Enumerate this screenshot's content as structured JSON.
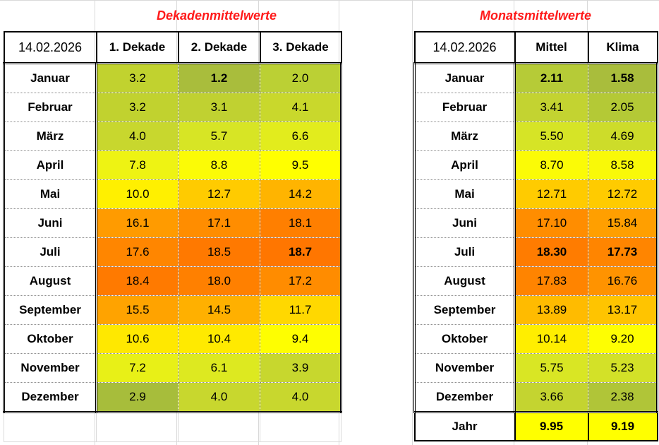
{
  "dekaden": {
    "title": "Dekadenmittelwerte",
    "date": "14.02.2026",
    "columns": [
      "1. Dekade",
      "2. Dekade",
      "3. Dekade"
    ],
    "rows": [
      {
        "month": "Januar",
        "values": [
          "3.2",
          "1.2",
          "2.0"
        ],
        "colors": [
          "#c1d22f",
          "#a9bd3c",
          "#bbd034"
        ],
        "bold": [
          false,
          true,
          false
        ]
      },
      {
        "month": "Februar",
        "values": [
          "3.2",
          "3.1",
          "4.1"
        ],
        "colors": [
          "#c1d22f",
          "#c0d131",
          "#c9d82c"
        ],
        "bold": [
          false,
          false,
          false
        ]
      },
      {
        "month": "März",
        "values": [
          "4.0",
          "5.7",
          "6.6"
        ],
        "colors": [
          "#c8d72e",
          "#d7e525",
          "#e2ec1d"
        ],
        "bold": [
          false,
          false,
          false
        ]
      },
      {
        "month": "April",
        "values": [
          "7.8",
          "8.8",
          "9.5"
        ],
        "colors": [
          "#eef313",
          "#fbfb06",
          "#ffff00"
        ],
        "bold": [
          false,
          false,
          false
        ]
      },
      {
        "month": "Mai",
        "values": [
          "10.0",
          "12.7",
          "14.2"
        ],
        "colors": [
          "#fff000",
          "#ffcb00",
          "#ffb400"
        ],
        "bold": [
          false,
          false,
          false
        ]
      },
      {
        "month": "Juni",
        "values": [
          "16.1",
          "17.1",
          "18.1"
        ],
        "colors": [
          "#ff9b00",
          "#ff8d00",
          "#ff7f00"
        ],
        "bold": [
          false,
          false,
          false
        ]
      },
      {
        "month": "Juli",
        "values": [
          "17.6",
          "18.5",
          "18.7"
        ],
        "colors": [
          "#ff8600",
          "#ff7900",
          "#ff7600"
        ],
        "bold": [
          false,
          false,
          true
        ]
      },
      {
        "month": "August",
        "values": [
          "18.4",
          "18.0",
          "17.2"
        ],
        "colors": [
          "#ff7a00",
          "#ff8000",
          "#ff8c00"
        ],
        "bold": [
          false,
          false,
          false
        ]
      },
      {
        "month": "September",
        "values": [
          "15.5",
          "14.5",
          "11.7"
        ],
        "colors": [
          "#ffa300",
          "#ffb000",
          "#ffd800"
        ],
        "bold": [
          false,
          false,
          false
        ]
      },
      {
        "month": "Oktober",
        "values": [
          "10.6",
          "10.4",
          "9.4"
        ],
        "colors": [
          "#ffe800",
          "#ffea00",
          "#fefe01"
        ],
        "bold": [
          false,
          false,
          false
        ]
      },
      {
        "month": "November",
        "values": [
          "7.2",
          "6.1",
          "3.9"
        ],
        "colors": [
          "#e8f017",
          "#dde920",
          "#c7d72e"
        ],
        "bold": [
          false,
          false,
          false
        ]
      },
      {
        "month": "Dezember",
        "values": [
          "2.9",
          "4.0",
          "4.0"
        ],
        "colors": [
          "#a7bd3b",
          "#c8d72e",
          "#c8d72e"
        ],
        "bold": [
          false,
          false,
          false
        ]
      }
    ]
  },
  "monats": {
    "title": "Monatsmittelwerte",
    "date": "14.02.2026",
    "columns": [
      "Mittel",
      "Klima"
    ],
    "rows": [
      {
        "month": "Januar",
        "values": [
          "2.11",
          "1.58"
        ],
        "colors": [
          "#b6cb37",
          "#a9bd3c"
        ],
        "bold": [
          true,
          true
        ]
      },
      {
        "month": "Februar",
        "values": [
          "3.41",
          "2.05"
        ],
        "colors": [
          "#c3d331",
          "#b4c936"
        ],
        "bold": [
          false,
          false
        ]
      },
      {
        "month": "März",
        "values": [
          "5.50",
          "4.69"
        ],
        "colors": [
          "#d6e426",
          "#cddc2a"
        ],
        "bold": [
          false,
          false
        ]
      },
      {
        "month": "April",
        "values": [
          "8.70",
          "8.58"
        ],
        "colors": [
          "#fbfb06",
          "#f9f908"
        ],
        "bold": [
          false,
          false
        ]
      },
      {
        "month": "Mai",
        "values": [
          "12.71",
          "12.72"
        ],
        "colors": [
          "#ffcb00",
          "#ffcb00"
        ],
        "bold": [
          false,
          false
        ]
      },
      {
        "month": "Juni",
        "values": [
          "17.10",
          "15.84"
        ],
        "colors": [
          "#ff8d00",
          "#ff9f00"
        ],
        "bold": [
          false,
          false
        ]
      },
      {
        "month": "Juli",
        "values": [
          "18.30",
          "17.73"
        ],
        "colors": [
          "#ff7c00",
          "#ff8500"
        ],
        "bold": [
          true,
          true
        ]
      },
      {
        "month": "August",
        "values": [
          "17.83",
          "16.76"
        ],
        "colors": [
          "#ff8400",
          "#ff9300"
        ],
        "bold": [
          false,
          false
        ]
      },
      {
        "month": "September",
        "values": [
          "13.89",
          "13.17"
        ],
        "colors": [
          "#ffbb00",
          "#ffc400"
        ],
        "bold": [
          false,
          false
        ]
      },
      {
        "month": "Oktober",
        "values": [
          "10.14",
          "9.20"
        ],
        "colors": [
          "#ffee00",
          "#fefe02"
        ],
        "bold": [
          false,
          false
        ]
      },
      {
        "month": "November",
        "values": [
          "5.75",
          "5.23"
        ],
        "colors": [
          "#d9e624",
          "#d3e128"
        ],
        "bold": [
          false,
          false
        ]
      },
      {
        "month": "Dezember",
        "values": [
          "3.66",
          "2.38"
        ],
        "colors": [
          "#c4d430",
          "#b0c538"
        ],
        "bold": [
          false,
          false
        ]
      }
    ],
    "year": {
      "label": "Jahr",
      "values": [
        "9.95",
        "9.19"
      ],
      "color": "#ffff00"
    }
  }
}
